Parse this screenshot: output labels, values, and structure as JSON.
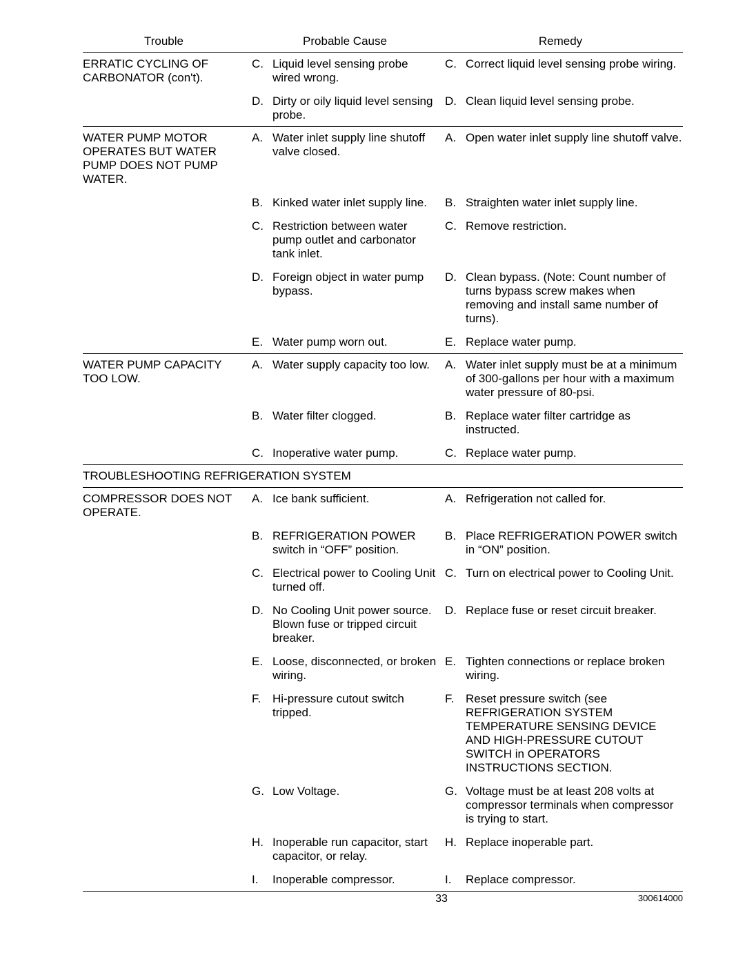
{
  "headers": {
    "trouble": "Trouble",
    "cause": "Probable Cause",
    "remedy": "Remedy"
  },
  "sections": [
    {
      "trouble": "ERRATIC CYCLING OF CARBONATOR (con't).",
      "rows": [
        {
          "cl": "C.",
          "ct": "Liquid level sensing probe wired wrong.",
          "rl": "C.",
          "rt": "Correct liquid level sensing probe wiring."
        },
        {
          "cl": "D.",
          "ct": "Dirty or oily liquid level sensing probe.",
          "rl": "D.",
          "rt": "Clean liquid level sensing probe."
        }
      ]
    },
    {
      "trouble": "WATER PUMP MOTOR OPERATES BUT WATER PUMP DOES NOT PUMP WATER.",
      "rows": [
        {
          "cl": "A.",
          "ct": "Water inlet supply line shutoff valve closed.",
          "rl": "A.",
          "rt": "Open water inlet supply line shutoff valve."
        },
        {
          "cl": "B.",
          "ct": "Kinked water inlet supply line.",
          "rl": "B.",
          "rt": "Straighten water inlet supply line."
        },
        {
          "cl": "C.",
          "ct": "Restriction between water pump outlet and carbonator tank inlet.",
          "rl": "C.",
          "rt": "Remove restriction."
        },
        {
          "cl": "D.",
          "ct": "Foreign object in water pump bypass.",
          "rl": "D.",
          "rt": "Clean bypass. (Note: Count number of turns bypass screw makes when removing and install same number of turns)."
        },
        {
          "cl": "E.",
          "ct": "Water pump worn out.",
          "rl": "E.",
          "rt": "Replace water pump."
        }
      ]
    },
    {
      "trouble": "WATER PUMP CAPACITY TOO LOW.",
      "rows": [
        {
          "cl": "A.",
          "ct": "Water supply capacity too low.",
          "rl": "A.",
          "rt": "Water inlet supply must be at a minimum of 300-gallons per hour with a maximum water pressure of 80-psi."
        },
        {
          "cl": "B.",
          "ct": "Water filter clogged.",
          "rl": "B.",
          "rt": "Replace water filter cartridge as instructed."
        },
        {
          "cl": "C.",
          "ct": "Inoperative water pump.",
          "rl": "C.",
          "rt": "Replace water pump."
        }
      ]
    }
  ],
  "sectionHeading": "TROUBLESHOOTING REFRIGERATION SYSTEM",
  "sections2": [
    {
      "trouble": "COMPRESSOR DOES NOT OPERATE.",
      "rows": [
        {
          "cl": "A.",
          "ct": "Ice bank sufficient.",
          "rl": "A.",
          "rt": "Refrigeration not called for."
        },
        {
          "cl": "B.",
          "ct": "REFRIGERATION POWER switch in  “OFF”  position.",
          "rl": "B.",
          "rt": "Place REFRIGERATION POWER switch in “ON” position."
        },
        {
          "cl": "C.",
          "ct": "Electrical power to Cooling Unit turned  off.",
          "rl": "C.",
          "rt": "Turn on electrical power to Cooling Unit."
        },
        {
          "cl": "D.",
          "ct": "No Cooling Unit power source. Blown fuse or tripped circuit breaker.",
          "rl": "D.",
          "rt": "Replace fuse or reset circuit breaker."
        },
        {
          "cl": "E.",
          "ct": "Loose, disconnected, or broken wiring.",
          "rl": "E.",
          "rt": "Tighten connections or replace broken wiring."
        },
        {
          "cl": "F.",
          "ct": "Hi-pressure cutout switch tripped.",
          "rl": "F.",
          "rt": "Reset pressure switch (see REFRIGERATION SYSTEM TEMPERATURE SENSING DEVICE AND HIGH-PRESSURE CUTOUT SWITCH in OPERATORS INSTRUCTIONS SECTION."
        },
        {
          "cl": "G.",
          "ct": "Low Voltage.",
          "rl": "G.",
          "rt": "Voltage must be at least 208 volts at compressor terminals when compressor is trying to  start."
        },
        {
          "cl": "H.",
          "ct": " Inoperable run capacitor, start capacitor, or relay.",
          "rl": "H.",
          "rt": "Replace inoperable part."
        },
        {
          "cl": "I.",
          "ct": "Inoperable compressor.",
          "rl": "I.",
          "rt": "Replace compressor."
        }
      ]
    }
  ],
  "footer": {
    "page": "33",
    "doc": "300614000"
  }
}
